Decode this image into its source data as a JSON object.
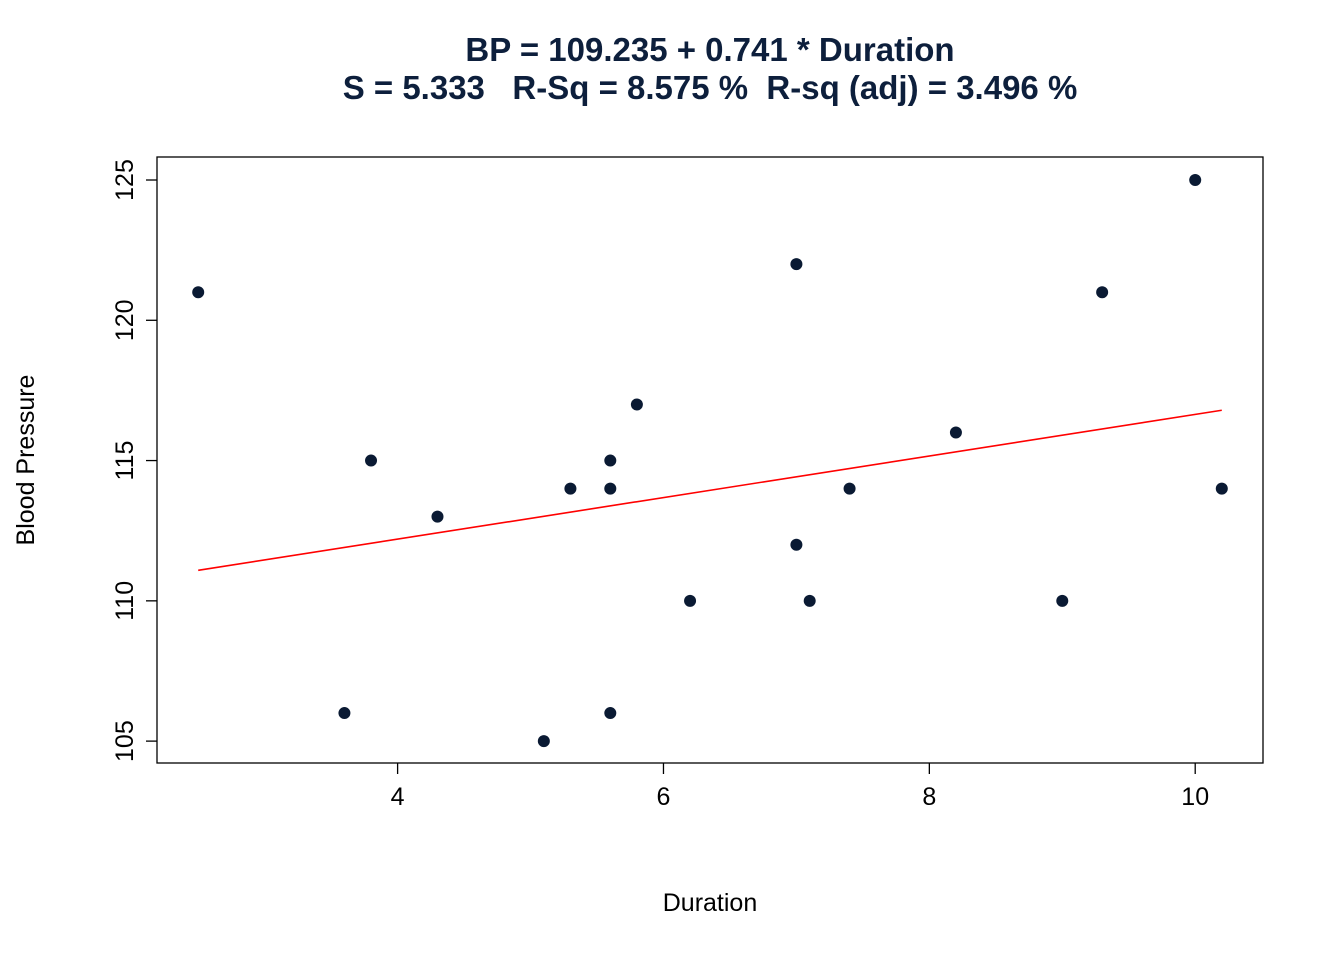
{
  "chart_data": {
    "type": "scatter",
    "title": "BP = 109.235 + 0.741 * Duration",
    "subtitle": "S = 5.333   R-Sq = 8.575 %  R-sq (adj) = 3.496 %",
    "xlabel": "Duration",
    "ylabel": "Blood Pressure",
    "xlim": [
      2.19,
      10.51
    ],
    "ylim": [
      104.22,
      125.82
    ],
    "xticks": [
      "4",
      "6",
      "8",
      "10"
    ],
    "yticks": [
      "105",
      "110",
      "115",
      "120",
      "125"
    ],
    "grid": false,
    "points": [
      {
        "x": 2.5,
        "y": 121
      },
      {
        "x": 3.6,
        "y": 106
      },
      {
        "x": 3.8,
        "y": 115
      },
      {
        "x": 4.3,
        "y": 113
      },
      {
        "x": 5.1,
        "y": 105
      },
      {
        "x": 5.3,
        "y": 114
      },
      {
        "x": 5.6,
        "y": 115
      },
      {
        "x": 5.6,
        "y": 114
      },
      {
        "x": 5.6,
        "y": 106
      },
      {
        "x": 5.8,
        "y": 117
      },
      {
        "x": 6.2,
        "y": 110
      },
      {
        "x": 7.0,
        "y": 122
      },
      {
        "x": 7.0,
        "y": 112
      },
      {
        "x": 7.1,
        "y": 110
      },
      {
        "x": 7.4,
        "y": 114
      },
      {
        "x": 8.2,
        "y": 116
      },
      {
        "x": 9.0,
        "y": 110
      },
      {
        "x": 9.3,
        "y": 121
      },
      {
        "x": 10.0,
        "y": 125
      },
      {
        "x": 10.2,
        "y": 114
      }
    ],
    "fit_line": {
      "intercept": 109.235,
      "slope": 0.741,
      "x_range": [
        2.5,
        10.2
      ]
    },
    "colors": {
      "points": "#0a1a33",
      "fit_line": "#ff0000",
      "title": "#0d1f3c"
    }
  }
}
